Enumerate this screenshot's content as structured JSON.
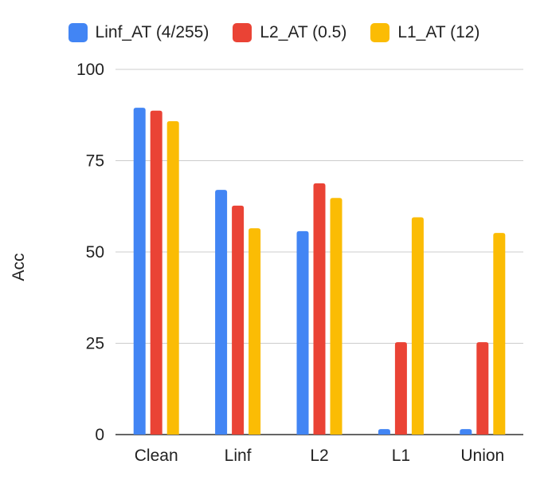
{
  "chart_data": {
    "type": "bar",
    "title": "",
    "xlabel": "",
    "ylabel": "Acc",
    "ylim": [
      0,
      100
    ],
    "yticks": [
      0,
      25,
      50,
      75,
      100
    ],
    "grid": true,
    "legend_position": "top",
    "categories": [
      "Clean",
      "Linf",
      "L2",
      "L1",
      "Union"
    ],
    "series": [
      {
        "name": "Linf_AT (4/255)",
        "color": "#4285f4",
        "values": [
          89.5,
          67,
          55.7,
          1.5,
          1.5
        ]
      },
      {
        "name": "L2_AT (0.5)",
        "color": "#ea4335",
        "values": [
          88.7,
          62.7,
          68.8,
          25.3,
          25.3
        ]
      },
      {
        "name": "L1_AT (12)",
        "color": "#fbbc04",
        "values": [
          85.8,
          56.5,
          64.8,
          59.5,
          55.2
        ]
      }
    ]
  }
}
